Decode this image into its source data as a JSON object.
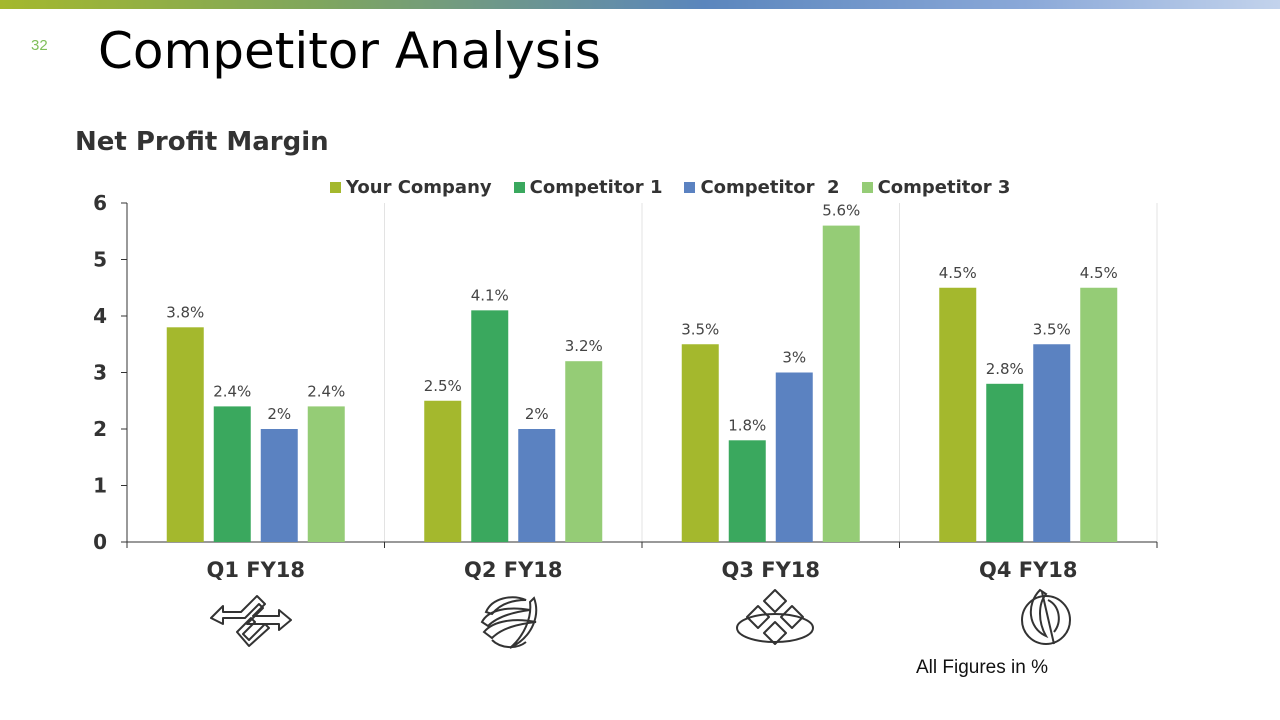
{
  "slide": {
    "page_number": "32",
    "title": "Competitor Analysis",
    "subtitle": "Net Profit Margin",
    "footnote": "All Figures in %"
  },
  "colors": {
    "top_bar_start": "#a4b82d",
    "top_bar_end": "#c3d3ec",
    "page_number": "#7fbf5a"
  },
  "chart_data": {
    "type": "bar",
    "title": "Net Profit Margin",
    "categories": [
      "Q1 FY18",
      "Q2 FY18",
      "Q3 FY18",
      "Q4 FY18"
    ],
    "series": [
      {
        "name": "Your Company",
        "color": "#a4b82d",
        "values": [
          3.8,
          2.5,
          3.5,
          4.5
        ],
        "labels": [
          "3.8%",
          "2.5%",
          "3.5%",
          "4.5%"
        ]
      },
      {
        "name": "Competitor 1",
        "color": "#3aa85e",
        "values": [
          2.4,
          4.1,
          1.8,
          2.8
        ],
        "labels": [
          "2.4%",
          "4.1%",
          "1.8%",
          "2.8%"
        ]
      },
      {
        "name": "Competitor  2",
        "color": "#5b82c1",
        "values": [
          2,
          2,
          3,
          3.5
        ],
        "labels": [
          "2%",
          "2%",
          "3%",
          "3.5%"
        ]
      },
      {
        "name": "Competitor 3",
        "color": "#95cc76",
        "values": [
          2.4,
          3.2,
          5.6,
          4.5
        ],
        "labels": [
          "2.4%",
          "3.2%",
          "5.6%",
          "4.5%"
        ]
      }
    ],
    "yticks": [
      "0",
      "1",
      "2",
      "3",
      "4",
      "5",
      "6"
    ],
    "ylim": [
      0,
      6
    ],
    "xlabel": "",
    "ylabel": "",
    "legend_position": "top",
    "grid": "vertical category separators"
  },
  "icons": [
    "arrows-exchange-icon",
    "swirl-sphere-icon",
    "diamond-squares-icon",
    "circle-leaf-icon"
  ]
}
